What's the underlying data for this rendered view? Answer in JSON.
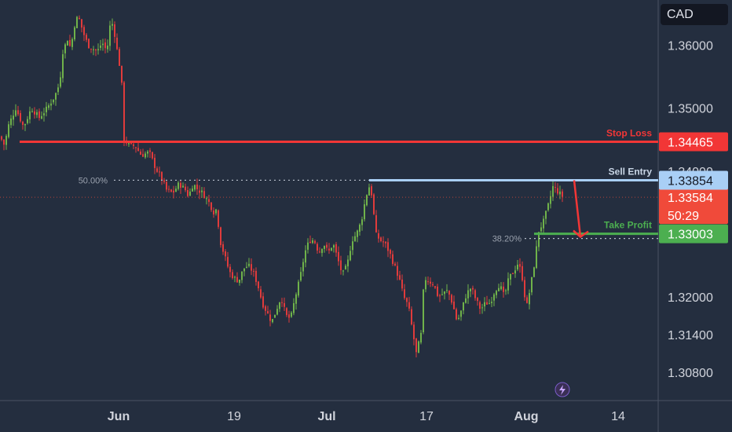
{
  "currency": "CAD",
  "colors": {
    "background": "#242e3f",
    "up": "#6fb24a",
    "down": "#e03b3b",
    "stop_loss": "#f23636",
    "sell_entry": "#a9cff5",
    "take_profit": "#4caf50",
    "current_price": "#f04a3a"
  },
  "chart_data": {
    "type": "candlestick",
    "ylim": [
      1.3035,
      1.3672
    ],
    "y_ticks": [
      "1.36000",
      "1.35000",
      "1.32000",
      "1.31400",
      "1.30800"
    ],
    "x_ticks": [
      {
        "label": "Jun",
        "bold": true
      },
      {
        "label": "19",
        "bold": false
      },
      {
        "label": "Jul",
        "bold": true
      },
      {
        "label": "17",
        "bold": false
      },
      {
        "label": "Aug",
        "bold": true
      },
      {
        "label": "14",
        "bold": false
      }
    ],
    "close_path": [
      [
        0,
        1.3455
      ],
      [
        6,
        1.344
      ],
      [
        10,
        1.347
      ],
      [
        20,
        1.35
      ],
      [
        30,
        1.347
      ],
      [
        40,
        1.35
      ],
      [
        50,
        1.3485
      ],
      [
        60,
        1.35
      ],
      [
        70,
        1.352
      ],
      [
        76,
        1.354
      ],
      [
        80,
        1.359
      ],
      [
        86,
        1.361
      ],
      [
        90,
        1.3595
      ],
      [
        96,
        1.364
      ],
      [
        100,
        1.3645
      ],
      [
        106,
        1.362
      ],
      [
        112,
        1.36
      ],
      [
        118,
        1.3595
      ],
      [
        124,
        1.359
      ],
      [
        130,
        1.3605
      ],
      [
        136,
        1.359
      ],
      [
        140,
        1.363
      ],
      [
        144,
        1.3635
      ],
      [
        148,
        1.36
      ],
      [
        152,
        1.357
      ],
      [
        156,
        1.3525
      ],
      [
        158,
        1.345
      ],
      [
        165,
        1.344
      ],
      [
        172,
        1.344
      ],
      [
        180,
        1.3425
      ],
      [
        190,
        1.343
      ],
      [
        198,
        1.3405
      ],
      [
        205,
        1.339
      ],
      [
        212,
        1.337
      ],
      [
        220,
        1.3365
      ],
      [
        228,
        1.338
      ],
      [
        236,
        1.337
      ],
      [
        240,
        1.336
      ],
      [
        246,
        1.338
      ],
      [
        252,
        1.337
      ],
      [
        258,
        1.3365
      ],
      [
        266,
        1.335
      ],
      [
        272,
        1.3335
      ],
      [
        276,
        1.334
      ],
      [
        280,
        1.329
      ],
      [
        286,
        1.3265
      ],
      [
        292,
        1.324
      ],
      [
        298,
        1.323
      ],
      [
        304,
        1.3225
      ],
      [
        310,
        1.3245
      ],
      [
        316,
        1.325
      ],
      [
        322,
        1.324
      ],
      [
        328,
        1.322
      ],
      [
        334,
        1.319
      ],
      [
        340,
        1.3175
      ],
      [
        346,
        1.316
      ],
      [
        352,
        1.318
      ],
      [
        358,
        1.32
      ],
      [
        364,
        1.317
      ],
      [
        370,
        1.3165
      ],
      [
        376,
        1.32
      ],
      [
        382,
        1.323
      ],
      [
        388,
        1.327
      ],
      [
        394,
        1.329
      ],
      [
        400,
        1.329
      ],
      [
        406,
        1.327
      ],
      [
        412,
        1.3285
      ],
      [
        418,
        1.327
      ],
      [
        424,
        1.3285
      ],
      [
        430,
        1.326
      ],
      [
        436,
        1.3235
      ],
      [
        442,
        1.325
      ],
      [
        448,
        1.329
      ],
      [
        454,
        1.33
      ],
      [
        460,
        1.332
      ],
      [
        466,
        1.336
      ],
      [
        470,
        1.3375
      ],
      [
        474,
        1.336
      ],
      [
        478,
        1.33
      ],
      [
        484,
        1.329
      ],
      [
        490,
        1.3285
      ],
      [
        496,
        1.327
      ],
      [
        502,
        1.325
      ],
      [
        508,
        1.323
      ],
      [
        514,
        1.32
      ],
      [
        520,
        1.3185
      ],
      [
        526,
        1.314
      ],
      [
        530,
        1.311
      ],
      [
        536,
        1.314
      ],
      [
        540,
        1.323
      ],
      [
        546,
        1.3225
      ],
      [
        552,
        1.322
      ],
      [
        558,
        1.32
      ],
      [
        564,
        1.3205
      ],
      [
        570,
        1.321
      ],
      [
        576,
        1.319
      ],
      [
        582,
        1.316
      ],
      [
        588,
        1.318
      ],
      [
        594,
        1.3205
      ],
      [
        600,
        1.3215
      ],
      [
        606,
        1.3195
      ],
      [
        612,
        1.318
      ],
      [
        618,
        1.319
      ],
      [
        624,
        1.319
      ],
      [
        630,
        1.321
      ],
      [
        636,
        1.322
      ],
      [
        642,
        1.32
      ],
      [
        648,
        1.323
      ],
      [
        654,
        1.324
      ],
      [
        660,
        1.3255
      ],
      [
        666,
        1.3225
      ],
      [
        670,
        1.318
      ],
      [
        676,
        1.322
      ],
      [
        680,
        1.325
      ],
      [
        686,
        1.3305
      ],
      [
        692,
        1.332
      ],
      [
        698,
        1.3345
      ],
      [
        704,
        1.3375
      ],
      [
        708,
        1.337
      ],
      [
        712,
        1.3365
      ],
      [
        716,
        1.336
      ]
    ],
    "annotations": {
      "stop_loss": {
        "label": "Stop Loss",
        "price": 1.34465,
        "price_label": "1.34465",
        "from_x": 25
      },
      "sell_entry": {
        "label": "Sell Entry",
        "price": 1.33854,
        "price_label": "1.33854",
        "from_x": 470
      },
      "take_profit": {
        "label": "Take Profit",
        "price": 1.33003,
        "price_label": "1.33003",
        "from_x": 680
      },
      "current_price": {
        "price": 1.33584,
        "price_label": "1.33584",
        "countdown": "50:29"
      },
      "fib_50": {
        "label": "50.00%",
        "price": 1.33854,
        "from_x": 145
      },
      "fib_382": {
        "label": "38.20%",
        "price": 1.33003,
        "from_x": 668
      },
      "hidden_tick": "1.34000"
    }
  }
}
